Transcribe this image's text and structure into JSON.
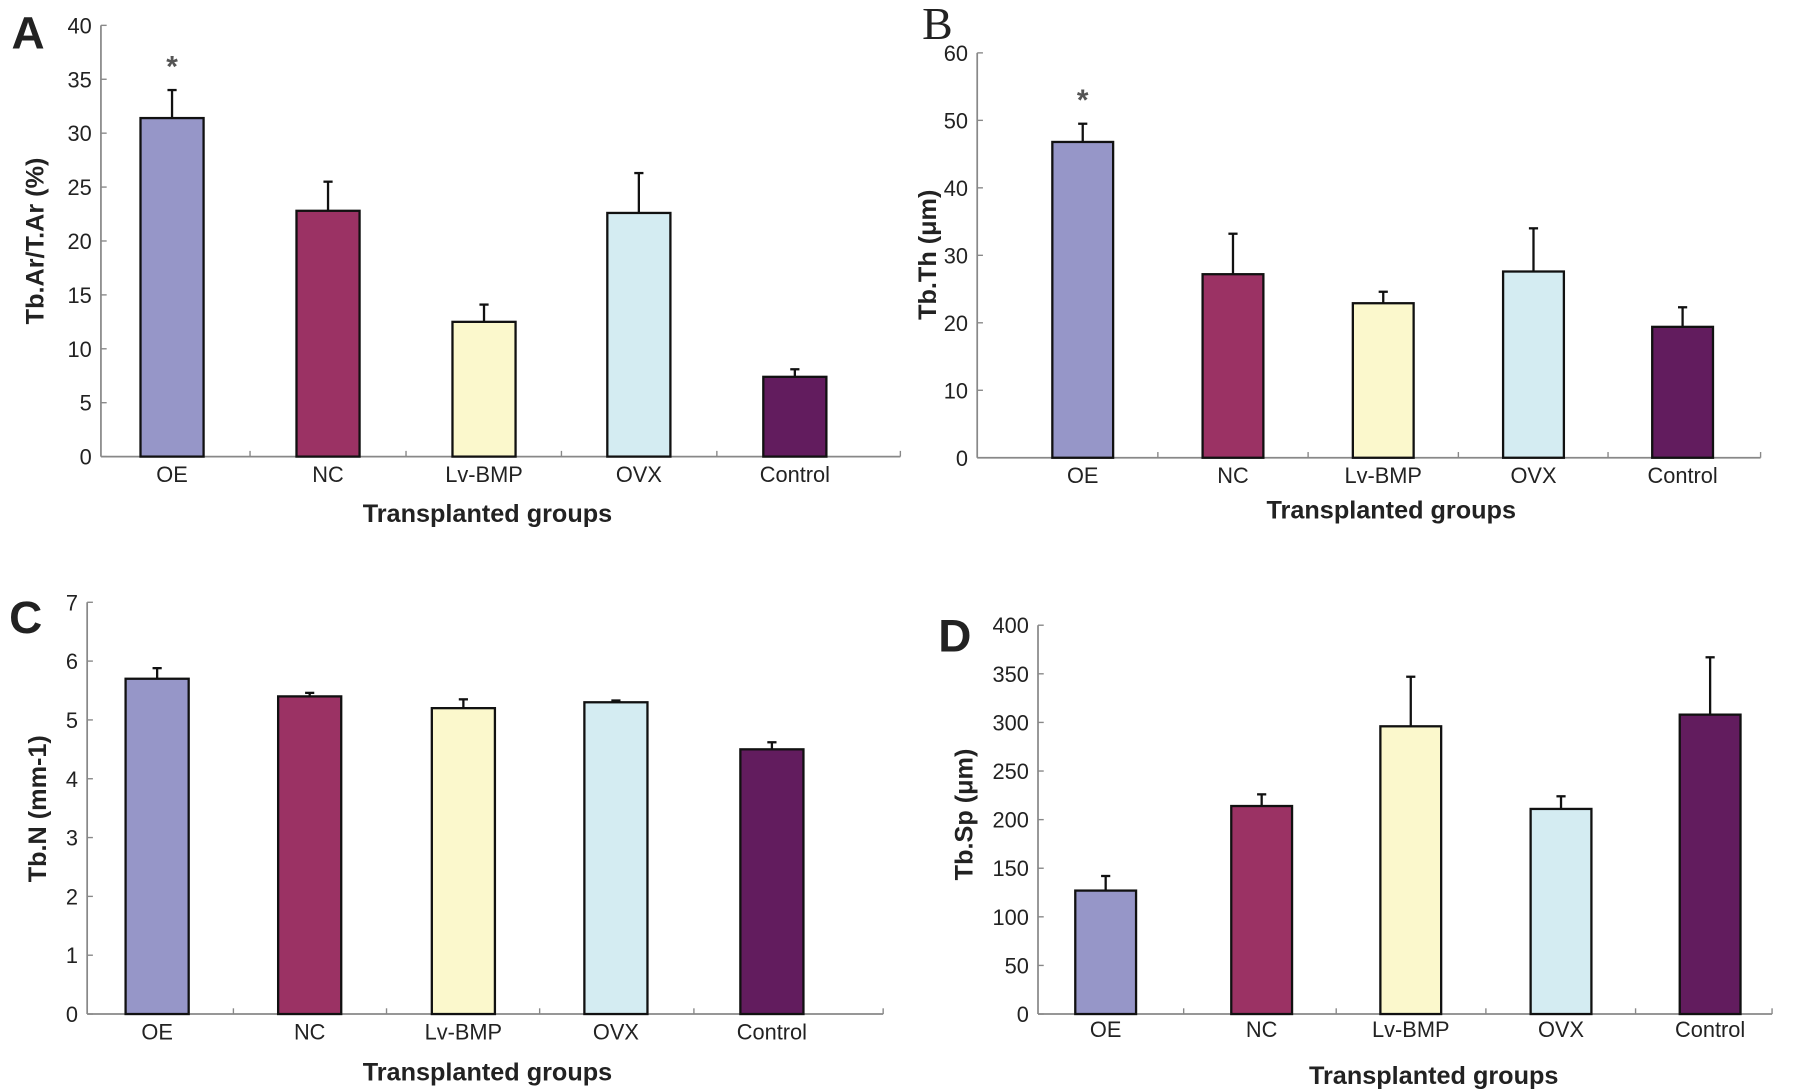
{
  "colors": {
    "OE": "#9696c8",
    "NC": "#9b3264",
    "Lv-BMP": "#fbf8cc",
    "OVX": "#d4ecf2",
    "Control": "#621c5e",
    "axis": "#888888"
  },
  "chart_data": [
    {
      "panel": "A",
      "type": "bar",
      "categories": [
        "OE",
        "NC",
        "Lv-BMP",
        "OVX",
        "Control"
      ],
      "values": [
        31.4,
        22.8,
        12.5,
        22.6,
        7.4
      ],
      "error_upper": [
        34.0,
        25.5,
        14.1,
        26.3,
        8.1
      ],
      "significance": [
        "*",
        "",
        "",
        "",
        ""
      ],
      "xlabel": "Transplanted groups",
      "ylabel": "Tb.Ar/T.Ar (%)",
      "ylim": [
        0,
        40
      ],
      "yticks": [
        "0",
        "5",
        "10",
        "15",
        "20",
        "25",
        "30",
        "35",
        "40"
      ],
      "grid": false
    },
    {
      "panel": "B",
      "type": "bar",
      "categories": [
        "OE",
        "NC",
        "Lv-BMP",
        "OVX",
        "Control"
      ],
      "values": [
        46.8,
        27.2,
        22.9,
        27.6,
        19.4
      ],
      "error_upper": [
        49.5,
        33.2,
        24.6,
        34.0,
        22.3
      ],
      "significance": [
        "*",
        "",
        "",
        "",
        ""
      ],
      "xlabel": "Transplanted groups",
      "ylabel": "Tb.Th (μm)",
      "ylim": [
        0,
        60
      ],
      "yticks": [
        "0",
        "10",
        "20",
        "30",
        "40",
        "50",
        "60"
      ],
      "grid": false
    },
    {
      "panel": "C",
      "type": "bar",
      "categories": [
        "OE",
        "NC",
        "Lv-BMP",
        "OVX",
        "Control"
      ],
      "values": [
        5.7,
        5.4,
        5.2,
        5.3,
        4.5
      ],
      "error_upper": [
        5.88,
        5.46,
        5.35,
        5.33,
        4.62
      ],
      "significance": [
        "",
        "",
        "",
        "",
        ""
      ],
      "xlabel": "Transplanted groups",
      "ylabel": "Tb.N (mm-1)",
      "ylim": [
        0,
        7
      ],
      "yticks": [
        "0",
        "1",
        "2",
        "3",
        "4",
        "5",
        "6",
        "7"
      ],
      "grid": false
    },
    {
      "panel": "D",
      "type": "bar",
      "categories": [
        "OE",
        "NC",
        "Lv-BMP",
        "OVX",
        "Control"
      ],
      "values": [
        127,
        214,
        296,
        211,
        308
      ],
      "error_upper": [
        142,
        226,
        347,
        224,
        367
      ],
      "significance": [
        "",
        "",
        "",
        "",
        ""
      ],
      "xlabel": "Transplanted groups",
      "ylabel": "Tb.Sp (μm)",
      "ylim": [
        0,
        400
      ],
      "yticks": [
        "0",
        "50",
        "100",
        "150",
        "200",
        "250",
        "300",
        "350",
        "400"
      ],
      "grid": false
    }
  ]
}
